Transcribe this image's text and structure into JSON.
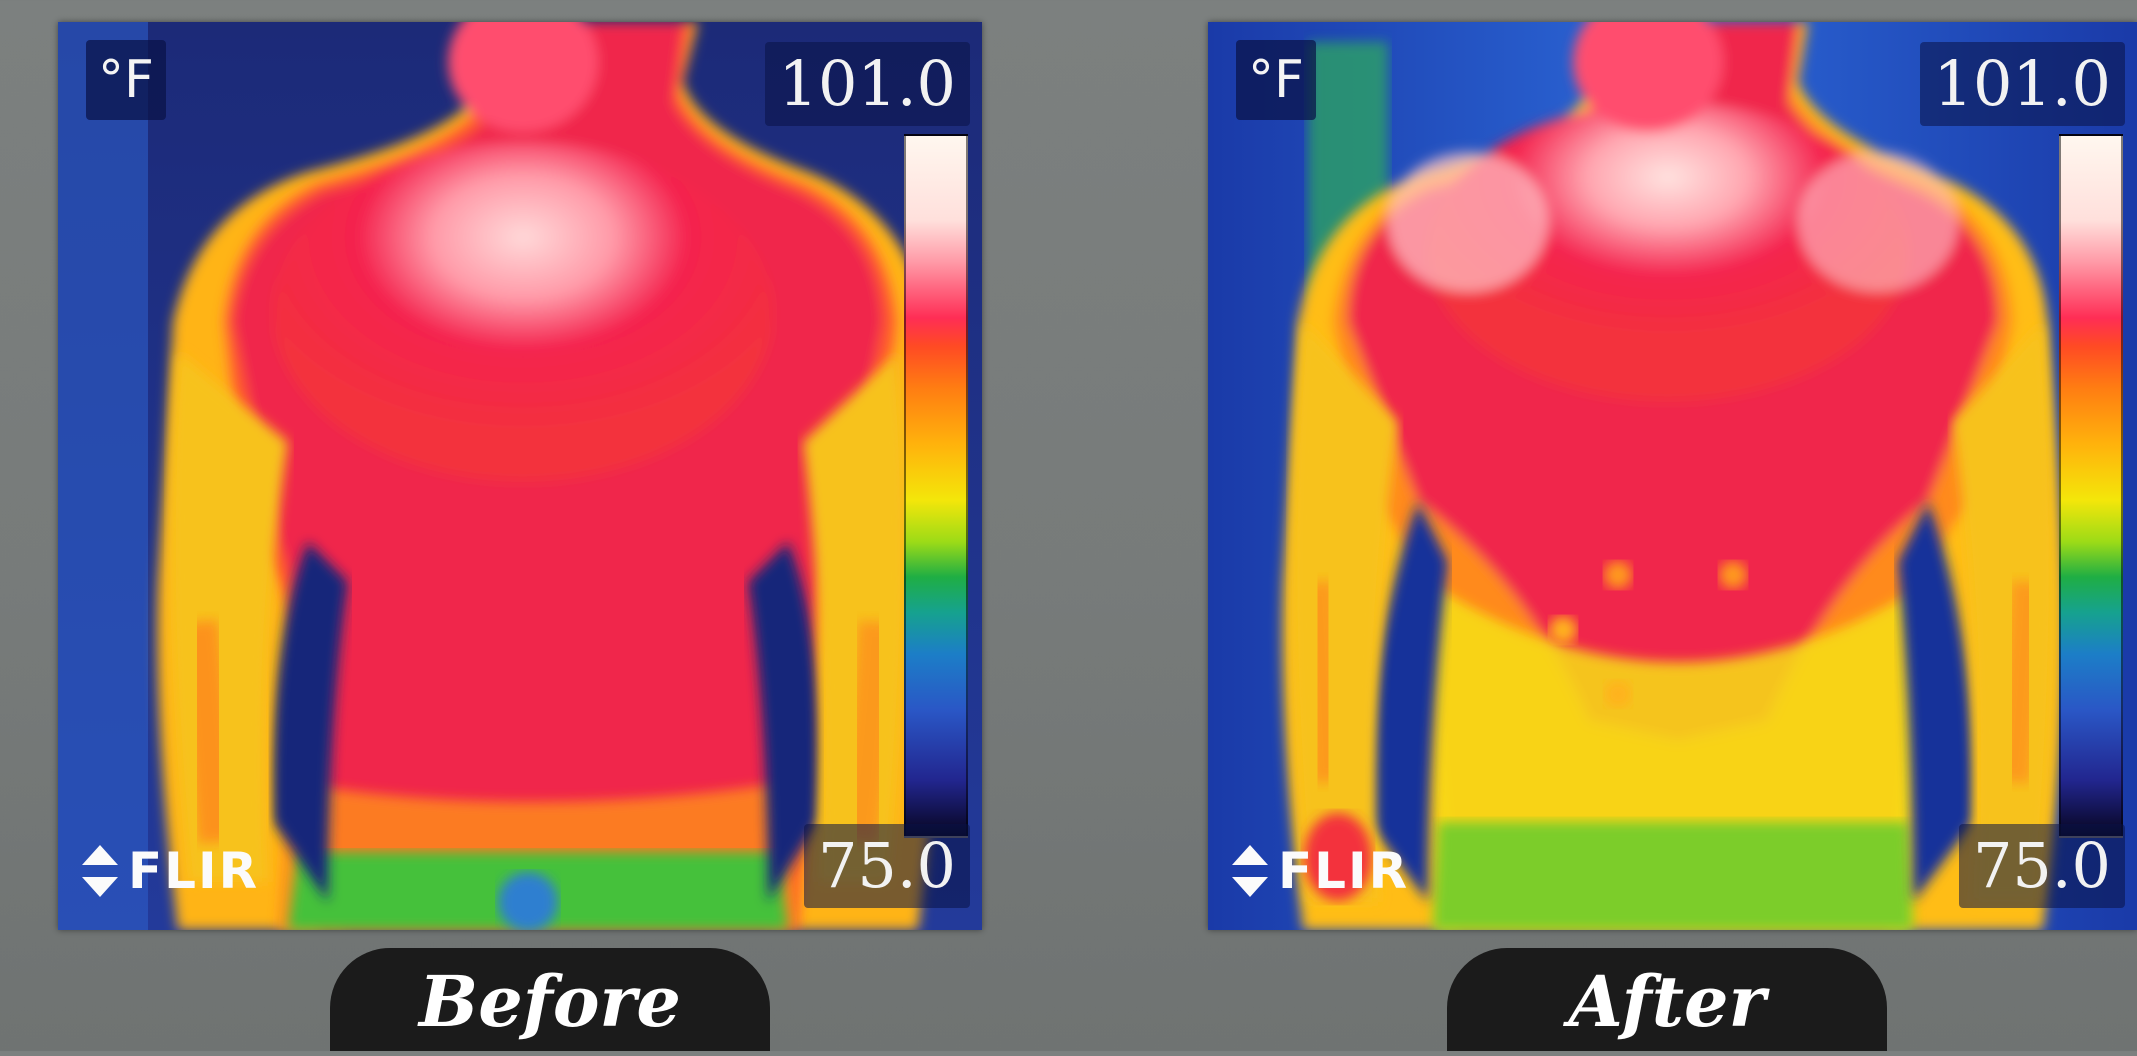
{
  "panels": [
    {
      "caption": "Before",
      "unit": "°F",
      "max_temp": "101.0",
      "min_temp": "75.0",
      "brand": "FLIR"
    },
    {
      "caption": "After",
      "unit": "°F",
      "max_temp": "101.0",
      "min_temp": "75.0",
      "brand": "FLIR"
    }
  ]
}
